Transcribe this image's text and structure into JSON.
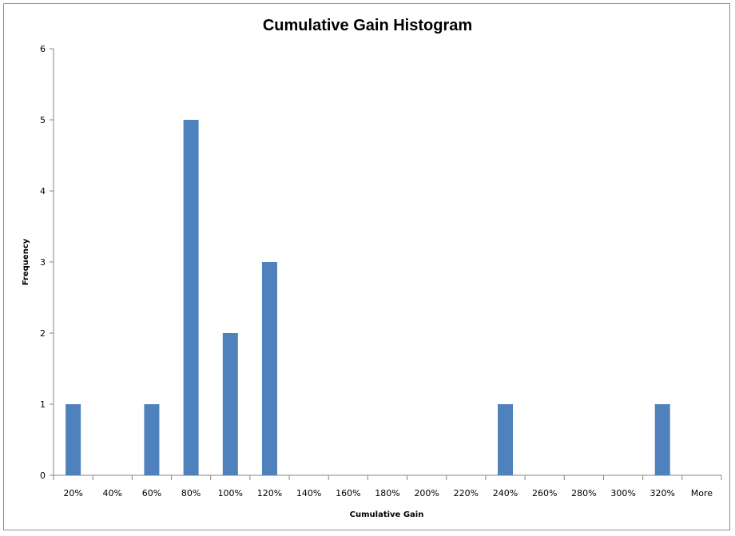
{
  "chart_data": {
    "type": "bar",
    "title": "Cumulative Gain Histogram",
    "xlabel": "Cumulative Gain",
    "ylabel": "Frequency",
    "categories": [
      "20%",
      "40%",
      "60%",
      "80%",
      "100%",
      "120%",
      "140%",
      "160%",
      "180%",
      "200%",
      "220%",
      "240%",
      "260%",
      "280%",
      "300%",
      "320%",
      "More"
    ],
    "values": [
      1,
      0,
      1,
      5,
      2,
      3,
      0,
      0,
      0,
      0,
      0,
      1,
      0,
      0,
      0,
      1,
      0
    ],
    "ylim": [
      0,
      6
    ],
    "yticks": [
      0,
      1,
      2,
      3,
      4,
      5,
      6
    ],
    "grid": false,
    "legend": "none",
    "bar_color": "#4f81bd"
  }
}
